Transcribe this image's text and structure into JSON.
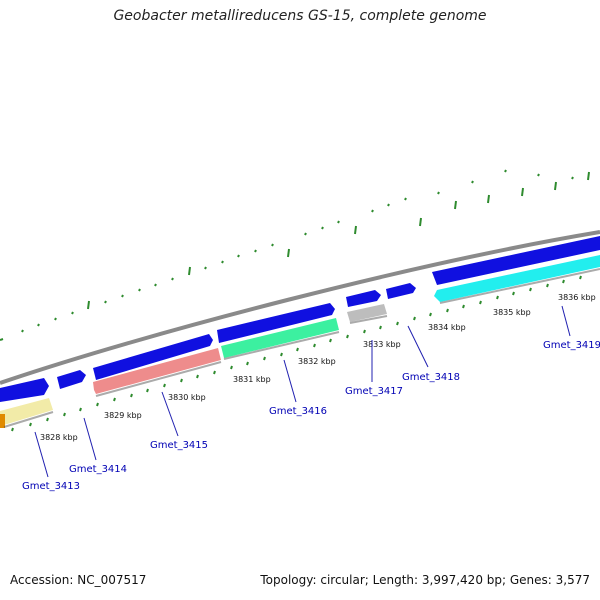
{
  "title": "Geobacter metallireducens GS-15, complete genome",
  "accession_text": "Accession: NC_007517",
  "summary_text": "Topology: circular; Length: 3,997,420 bp; Genes: 3,577",
  "colors": {
    "forward_gene": "#1010e0",
    "backbone": "#808080",
    "gc_marks": "#2e8b2e",
    "label": "#0000b4"
  },
  "tick_labels": [
    "3828 kbp",
    "3829 kbp",
    "3830 kbp",
    "3831 kbp",
    "3832 kbp",
    "3833 kbp",
    "3834 kbp",
    "3835 kbp",
    "3836 kbp"
  ],
  "genes": [
    {
      "name": "Gmet_3413",
      "strand": "reverse",
      "color": "#f2eba8"
    },
    {
      "name": "Gmet_3414",
      "strand": "forward",
      "color": "#1010e0"
    },
    {
      "name": "Gmet_3415",
      "strand": "reverse",
      "color": "#ee8c8c"
    },
    {
      "name": "Gmet_3416",
      "strand": "reverse",
      "color": "#3cf0a0"
    },
    {
      "name": "Gmet_3417",
      "strand": "reverse",
      "color": "#bdbdbd"
    },
    {
      "name": "Gmet_3418",
      "strand": "forward",
      "color": "#1010e0"
    },
    {
      "name": "Gmet_3419",
      "strand": "reverse",
      "color": "#22eeee"
    }
  ]
}
